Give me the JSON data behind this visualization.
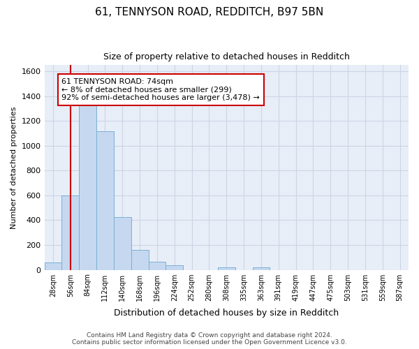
{
  "title_line1": "61, TENNYSON ROAD, REDDITCH, B97 5BN",
  "title_line2": "Size of property relative to detached houses in Redditch",
  "xlabel": "Distribution of detached houses by size in Redditch",
  "ylabel": "Number of detached properties",
  "footnote": "Contains HM Land Registry data © Crown copyright and database right 2024.\nContains public sector information licensed under the Open Government Licence v3.0.",
  "bin_labels": [
    "28sqm",
    "56sqm",
    "84sqm",
    "112sqm",
    "140sqm",
    "168sqm",
    "196sqm",
    "224sqm",
    "252sqm",
    "280sqm",
    "308sqm",
    "335sqm",
    "363sqm",
    "391sqm",
    "419sqm",
    "447sqm",
    "475sqm",
    "503sqm",
    "531sqm",
    "559sqm",
    "587sqm"
  ],
  "bar_values": [
    60,
    600,
    1340,
    1120,
    425,
    160,
    65,
    35,
    0,
    0,
    20,
    0,
    20,
    0,
    0,
    0,
    0,
    0,
    0,
    0,
    0
  ],
  "bar_color": "#c5d8f0",
  "bar_edge_color": "#7bafd4",
  "vline_x": 1,
  "vline_color": "#cc0000",
  "annotation_text": "61 TENNYSON ROAD: 74sqm\n← 8% of detached houses are smaller (299)\n92% of semi-detached houses are larger (3,478) →",
  "annotation_box_facecolor": "#ffffff",
  "annotation_box_edgecolor": "#cc0000",
  "ylim": [
    0,
    1650
  ],
  "yticks": [
    0,
    200,
    400,
    600,
    800,
    1000,
    1200,
    1400,
    1600
  ],
  "grid_color": "#ccd5e5",
  "bg_color": "#ffffff",
  "plot_bg_color": "#e8eef8"
}
